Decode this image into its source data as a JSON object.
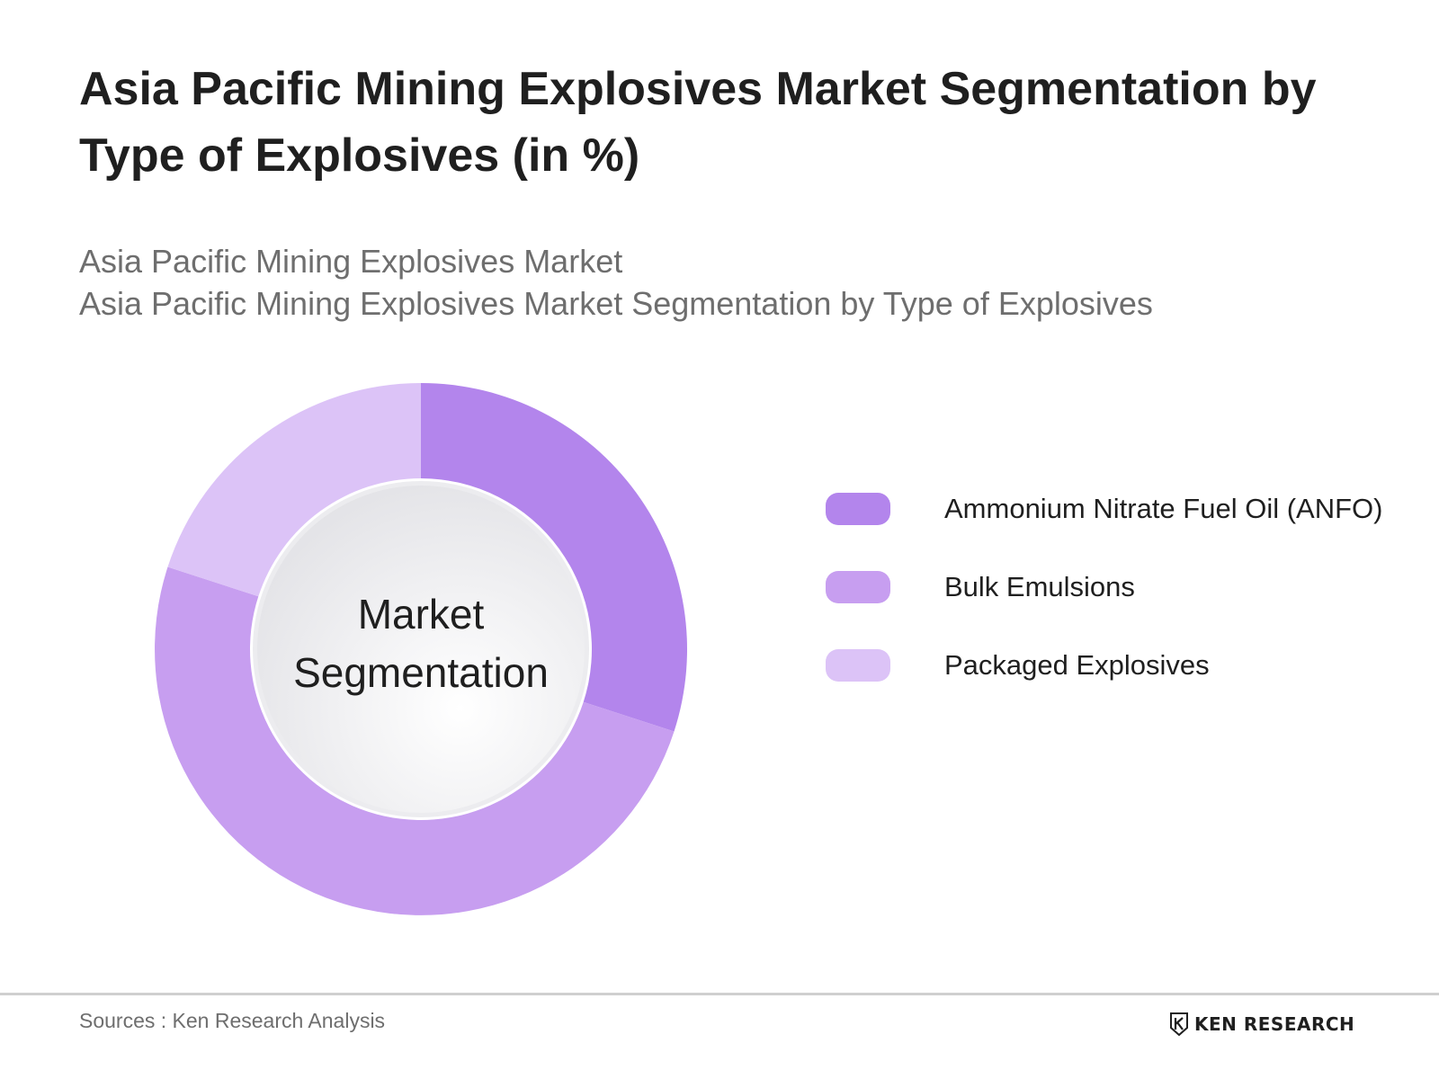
{
  "page": {
    "title": "Asia Pacific Mining Explosives Market Segmentation by Type of Explosives (in %)",
    "subtitle_line1": "Asia Pacific Mining Explosives Market",
    "subtitle_line2": "Asia Pacific Mining Explosives Market Segmentation by Type of Explosives",
    "sources": "Sources : Ken Research Analysis",
    "brand": "KEN RESEARCH"
  },
  "chart_data": {
    "type": "pie",
    "variant": "donut",
    "title": "Asia Pacific Mining Explosives Market Segmentation by Type of Explosives (in %)",
    "center_label": [
      "Market",
      "Segmentation"
    ],
    "categories": [
      "Ammonium Nitrate Fuel Oil (ANFO)",
      "Bulk Emulsions",
      "Packaged Explosives"
    ],
    "values": [
      30,
      50,
      20
    ],
    "colors": [
      "#b385ec",
      "#c79ef0",
      "#dcc3f7"
    ],
    "legend_position": "right"
  }
}
